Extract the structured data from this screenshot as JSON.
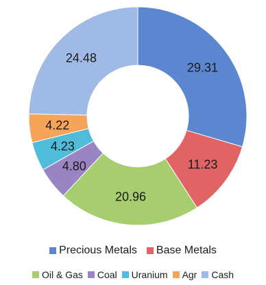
{
  "chart_data": {
    "type": "pie",
    "style": "donut",
    "categories": [
      "Precious Metals",
      "Base Metals",
      "Oil & Gas",
      "Coal",
      "Uranium",
      "Agr",
      "Cash"
    ],
    "values": [
      29.31,
      11.23,
      20.96,
      4.8,
      4.23,
      4.22,
      24.48
    ],
    "labels": [
      "29.31",
      "11.23",
      "20.96",
      "4.80",
      "4.23",
      "4.22",
      "24.48"
    ],
    "colors": [
      "#5B87D0",
      "#E06464",
      "#A6CE6E",
      "#9A85C4",
      "#4FBCD9",
      "#F5A45A",
      "#9FBBE5"
    ],
    "legend": {
      "placement": "bottom",
      "row1": [
        "Precious Metals",
        "Base Metals"
      ],
      "row2": [
        "Oil & Gas",
        "Coal",
        "Uranium",
        "Agr",
        "Cash"
      ]
    }
  }
}
